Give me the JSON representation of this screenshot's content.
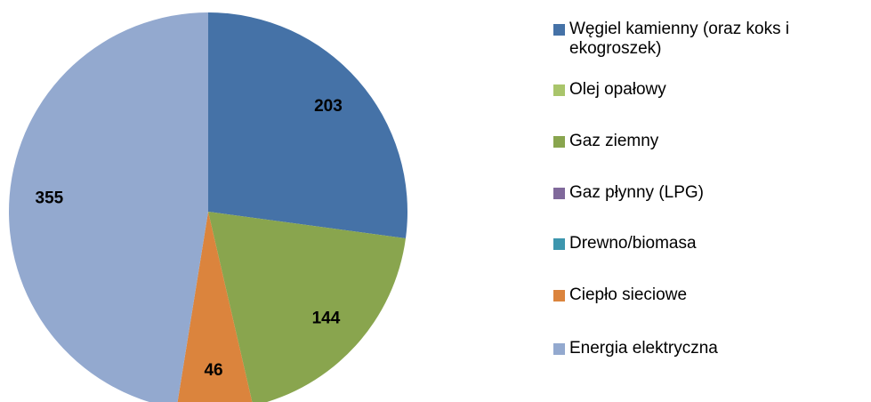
{
  "chart_data": {
    "type": "pie",
    "categories": [
      "Węgiel kamienny (oraz koks i ekogroszek)",
      "Olej opałowy",
      "Gaz ziemny",
      "Gaz płynny (LPG)",
      "Drewno/biomasa",
      "Ciepło sieciowe",
      "Energia elektryczna"
    ],
    "values": [
      203,
      0,
      144,
      0,
      0,
      46,
      355
    ],
    "colors": [
      "#4572a7",
      "#a9c56b",
      "#89a54e",
      "#80699b",
      "#3d96ae",
      "#db843d",
      "#93a9cf"
    ],
    "legend": "right"
  }
}
